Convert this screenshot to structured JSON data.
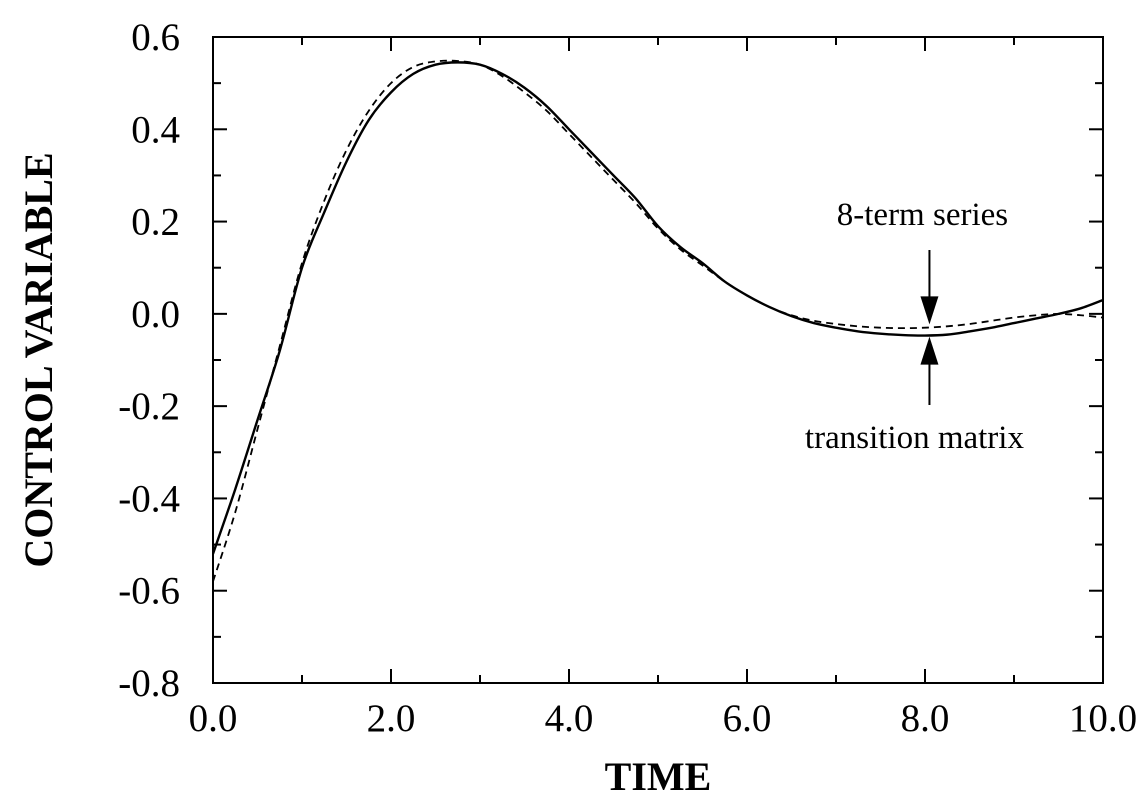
{
  "chart_data": {
    "type": "line",
    "xlabel": "TIME",
    "ylabel": "CONTROL VARIABLE",
    "xlim": [
      0,
      10
    ],
    "ylim": [
      -0.8,
      0.6
    ],
    "x_ticks": [
      {
        "value": 0,
        "label": "0.0"
      },
      {
        "value": 2,
        "label": "2.0"
      },
      {
        "value": 4,
        "label": "4.0"
      },
      {
        "value": 6,
        "label": "6.0"
      },
      {
        "value": 8,
        "label": "8.0"
      },
      {
        "value": 10,
        "label": "10.0"
      }
    ],
    "y_ticks": [
      {
        "value": 0.6,
        "label": "0.6"
      },
      {
        "value": 0.4,
        "label": "0.4"
      },
      {
        "value": 0.2,
        "label": "0.2"
      },
      {
        "value": 0.0,
        "label": "0.0"
      },
      {
        "value": -0.2,
        "label": "-0.2"
      },
      {
        "value": -0.4,
        "label": "-0.4"
      },
      {
        "value": -0.6,
        "label": "-0.6"
      },
      {
        "value": -0.8,
        "label": "-0.8"
      }
    ],
    "series": [
      {
        "style": "solid",
        "x": [
          0,
          0.25,
          0.5,
          0.75,
          1.0,
          1.25,
          1.5,
          1.75,
          2.0,
          2.25,
          2.5,
          2.75,
          3.0,
          3.25,
          3.5,
          3.75,
          4.0,
          4.25,
          4.5,
          4.75,
          5.0,
          5.25,
          5.5,
          5.75,
          6.0,
          6.25,
          6.5,
          6.75,
          7.0,
          7.25,
          7.5,
          7.75,
          8.0,
          8.25,
          8.5,
          8.75,
          9.0,
          9.25,
          9.5,
          9.75,
          10.0
        ],
        "y": [
          -0.52,
          -0.38,
          -0.23,
          -0.08,
          0.1,
          0.22,
          0.33,
          0.42,
          0.48,
          0.52,
          0.54,
          0.545,
          0.54,
          0.52,
          0.49,
          0.45,
          0.4,
          0.35,
          0.3,
          0.25,
          0.19,
          0.145,
          0.11,
          0.07,
          0.04,
          0.015,
          -0.005,
          -0.02,
          -0.03,
          -0.038,
          -0.043,
          -0.046,
          -0.047,
          -0.045,
          -0.038,
          -0.03,
          -0.02,
          -0.01,
          0.0,
          0.012,
          0.03
        ]
      },
      {
        "style": "dashed",
        "x": [
          0,
          0.25,
          0.5,
          0.75,
          1.0,
          1.25,
          1.5,
          1.75,
          2.0,
          2.25,
          2.5,
          2.75,
          3.0,
          3.25,
          3.5,
          3.75,
          4.0,
          4.25,
          4.5,
          4.75,
          5.0,
          5.25,
          5.5,
          5.75,
          6.0,
          6.25,
          6.5,
          6.75,
          7.0,
          7.25,
          7.5,
          7.75,
          8.0,
          8.25,
          8.5,
          8.75,
          9.0,
          9.25,
          9.5,
          9.75,
          10.0
        ],
        "y": [
          -0.58,
          -0.43,
          -0.25,
          -0.07,
          0.11,
          0.245,
          0.355,
          0.44,
          0.5,
          0.535,
          0.547,
          0.548,
          0.54,
          0.515,
          0.48,
          0.44,
          0.39,
          0.34,
          0.29,
          0.24,
          0.185,
          0.14,
          0.105,
          0.07,
          0.04,
          0.015,
          -0.003,
          -0.015,
          -0.022,
          -0.027,
          -0.03,
          -0.031,
          -0.03,
          -0.027,
          -0.022,
          -0.015,
          -0.008,
          -0.003,
          0.0,
          -0.003,
          -0.008
        ]
      }
    ],
    "annotations": [
      {
        "text": "8-term series",
        "target": [
          8.05,
          -0.027
        ],
        "arrow_from": "above"
      },
      {
        "text": "transition matrix",
        "target": [
          8.05,
          -0.045
        ],
        "arrow_from": "below"
      }
    ],
    "grid": false,
    "legend": "none"
  }
}
